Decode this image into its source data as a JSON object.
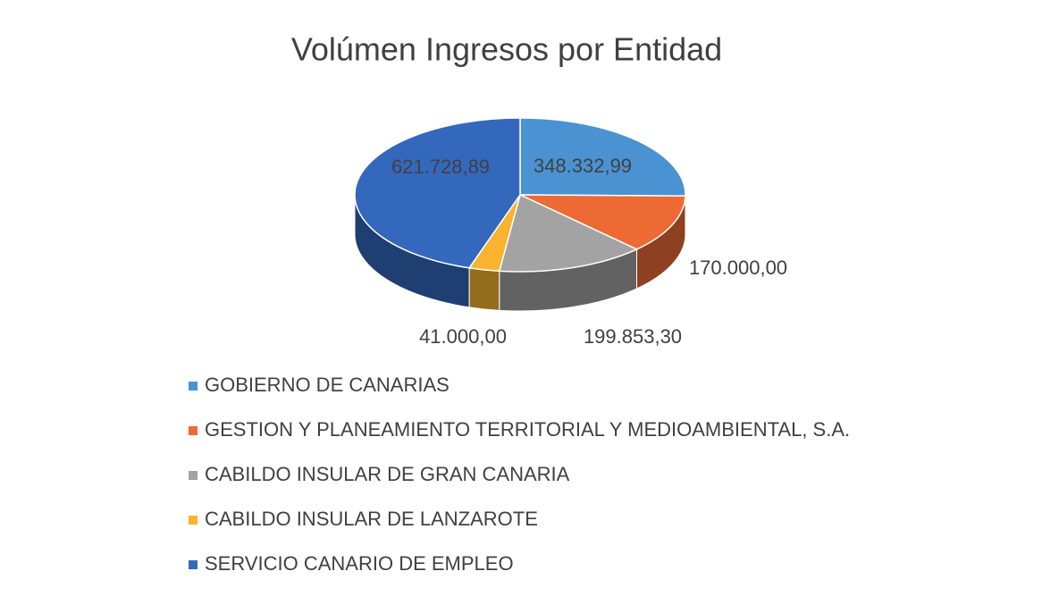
{
  "chart_data": {
    "type": "pie3d",
    "title": "Volúmen Ingresos por Entidad",
    "categories": [
      "GOBIERNO DE CANARIAS",
      "GESTION Y PLANEAMIENTO TERRITORIAL Y MEDIOAMBIENTAL, S.A.",
      "CABILDO INSULAR DE GRAN CANARIA",
      "CABILDO INSULAR DE LANZAROTE",
      "SERVICIO CANARIO DE EMPLEO"
    ],
    "values": [
      348332.99,
      170000,
      199853.3,
      41000,
      621728.89
    ],
    "value_labels": [
      "348.332,99",
      "170.000,00",
      "199.853,30",
      "41.000,00",
      "621.728,89"
    ],
    "colors": [
      "#4a92d1",
      "#ed6a35",
      "#a3a3a3",
      "#f9b32f",
      "#3468bd"
    ],
    "legend": "bottom"
  }
}
